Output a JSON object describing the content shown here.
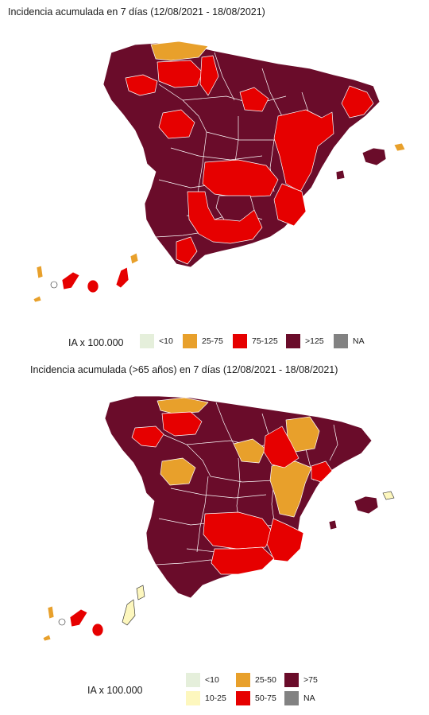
{
  "map1": {
    "title": "Incidencia acumulada en 7 días (12/08/2021 - 18/08/2021)",
    "legend": {
      "title": "IA x 100.000",
      "items": [
        {
          "label": "<10",
          "color": "#e5efdb"
        },
        {
          "label": "25-75",
          "color": "#e8a02b"
        },
        {
          "label": "75-125",
          "color": "#e60000"
        },
        {
          "label": ">125",
          "color": "#6a0c2a"
        },
        {
          "label": "NA",
          "color": "#828282"
        }
      ]
    }
  },
  "map2": {
    "title": "Incidencia acumulada (>65 años) en 7 días (12/08/2021 - 18/08/2021)",
    "legend": {
      "title": "IA x 100.000",
      "items": [
        {
          "label": "<10",
          "color": "#e5efdb"
        },
        {
          "label": "25-50",
          "color": "#e8a02b"
        },
        {
          "label": ">75",
          "color": "#6a0c2a"
        },
        {
          "label": "10-25",
          "color": "#fdf7be"
        },
        {
          "label": "50-75",
          "color": "#e60000"
        },
        {
          "label": "NA",
          "color": "#828282"
        }
      ]
    }
  },
  "colors": {
    "dark": "#6a0c2a",
    "red": "#e60000",
    "orange": "#e8a02b",
    "pale_yellow": "#fdf7be",
    "pale_green": "#e5efdb",
    "na_grey": "#828282"
  }
}
